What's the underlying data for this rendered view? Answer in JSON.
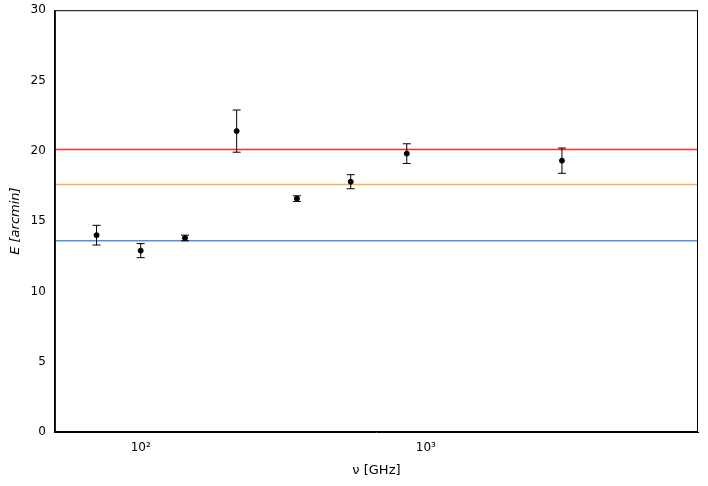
{
  "chart_data": {
    "type": "scatter",
    "x_label": "ν [GHz]",
    "y_label": "E [arcmin]",
    "x": [
      70,
      100,
      143,
      217,
      353,
      545,
      857,
      3000
    ],
    "values": [
      14.0,
      12.9,
      13.8,
      21.4,
      16.6,
      17.8,
      19.8,
      19.3
    ],
    "errors": [
      0.7,
      0.5,
      0.2,
      1.5,
      0.2,
      0.5,
      0.7,
      0.9
    ],
    "color": "#000000",
    "marker": "circle",
    "log": "x",
    "grid": false,
    "xlim": [
      50,
      9000
    ],
    "xticks": [
      {
        "value": 100,
        "label": "10²"
      },
      {
        "value": 1000,
        "label": "10³"
      }
    ],
    "ylim": [
      0,
      30
    ],
    "yticks": [
      0,
      5,
      10,
      15,
      20,
      25,
      30
    ],
    "hlines": [
      {
        "value": 20.1,
        "color": "#ff2a2a"
      },
      {
        "value": 17.6,
        "color": "#f5b447"
      },
      {
        "value": 13.6,
        "color": "#5b8ee6"
      }
    ]
  }
}
